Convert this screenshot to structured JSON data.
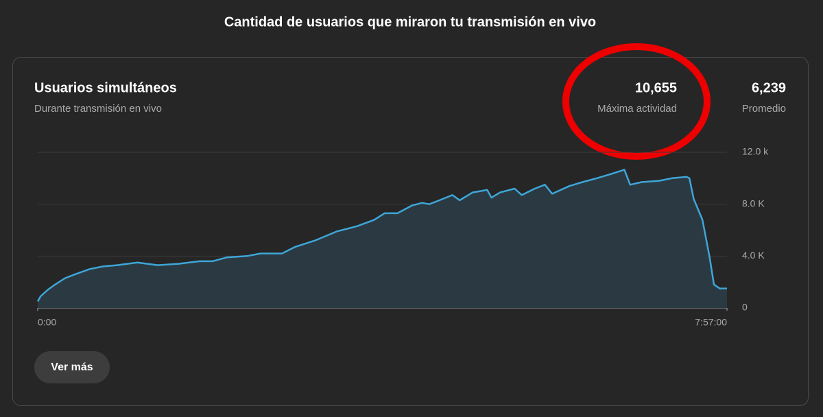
{
  "header": {
    "title": "Cantidad de usuarios que miraron tu transmisión en vivo"
  },
  "card": {
    "title": "Usuarios simultáneos",
    "subtitle": "Durante transmisión en vivo",
    "stats": [
      {
        "value": "10,655",
        "label": "Máxima actividad"
      },
      {
        "value": "6,239",
        "label": "Promedio"
      }
    ],
    "button": "Ver más"
  },
  "chart_data": {
    "type": "area",
    "color": "#3ea6d8",
    "fill": "#2b3a42",
    "grid": true,
    "x": [
      0,
      2,
      7,
      12,
      19,
      26,
      36,
      45,
      55,
      69,
      83,
      97,
      112,
      121,
      131,
      145,
      154,
      169,
      178,
      192,
      207,
      221,
      233,
      240,
      249,
      259,
      266,
      271,
      278,
      287,
      292,
      301,
      311,
      314,
      320,
      330,
      335,
      344,
      351,
      356,
      368,
      377,
      387,
      396,
      406,
      410,
      418,
      430,
      439,
      449,
      451,
      454,
      460,
      465,
      468,
      472,
      477
    ],
    "values": [
      500,
      900,
      1400,
      1800,
      2300,
      2600,
      3000,
      3200,
      3300,
      3500,
      3300,
      3400,
      3600,
      3600,
      3900,
      4000,
      4200,
      4200,
      4700,
      5200,
      5900,
      6300,
      6800,
      7300,
      7300,
      7900,
      8100,
      8000,
      8300,
      8700,
      8300,
      8900,
      9100,
      8500,
      8900,
      9200,
      8700,
      9200,
      9500,
      8800,
      9400,
      9700,
      10000,
      10300,
      10655,
      9500,
      9700,
      9800,
      10000,
      10100,
      10000,
      8400,
      6800,
      3900,
      1800,
      1500,
      1500
    ],
    "xlim": [
      0,
      477
    ],
    "xticks": [
      {
        "value": 0,
        "label": "0:00"
      },
      {
        "value": 477,
        "label": "7:57:00"
      }
    ],
    "ylim": [
      0,
      12000
    ],
    "yticks": [
      0,
      {
        "value": 4000,
        "label": "4.0 K"
      },
      {
        "value": 8000,
        "label": "8.0 K"
      },
      {
        "value": 12000,
        "label": "12.0 k"
      }
    ]
  }
}
